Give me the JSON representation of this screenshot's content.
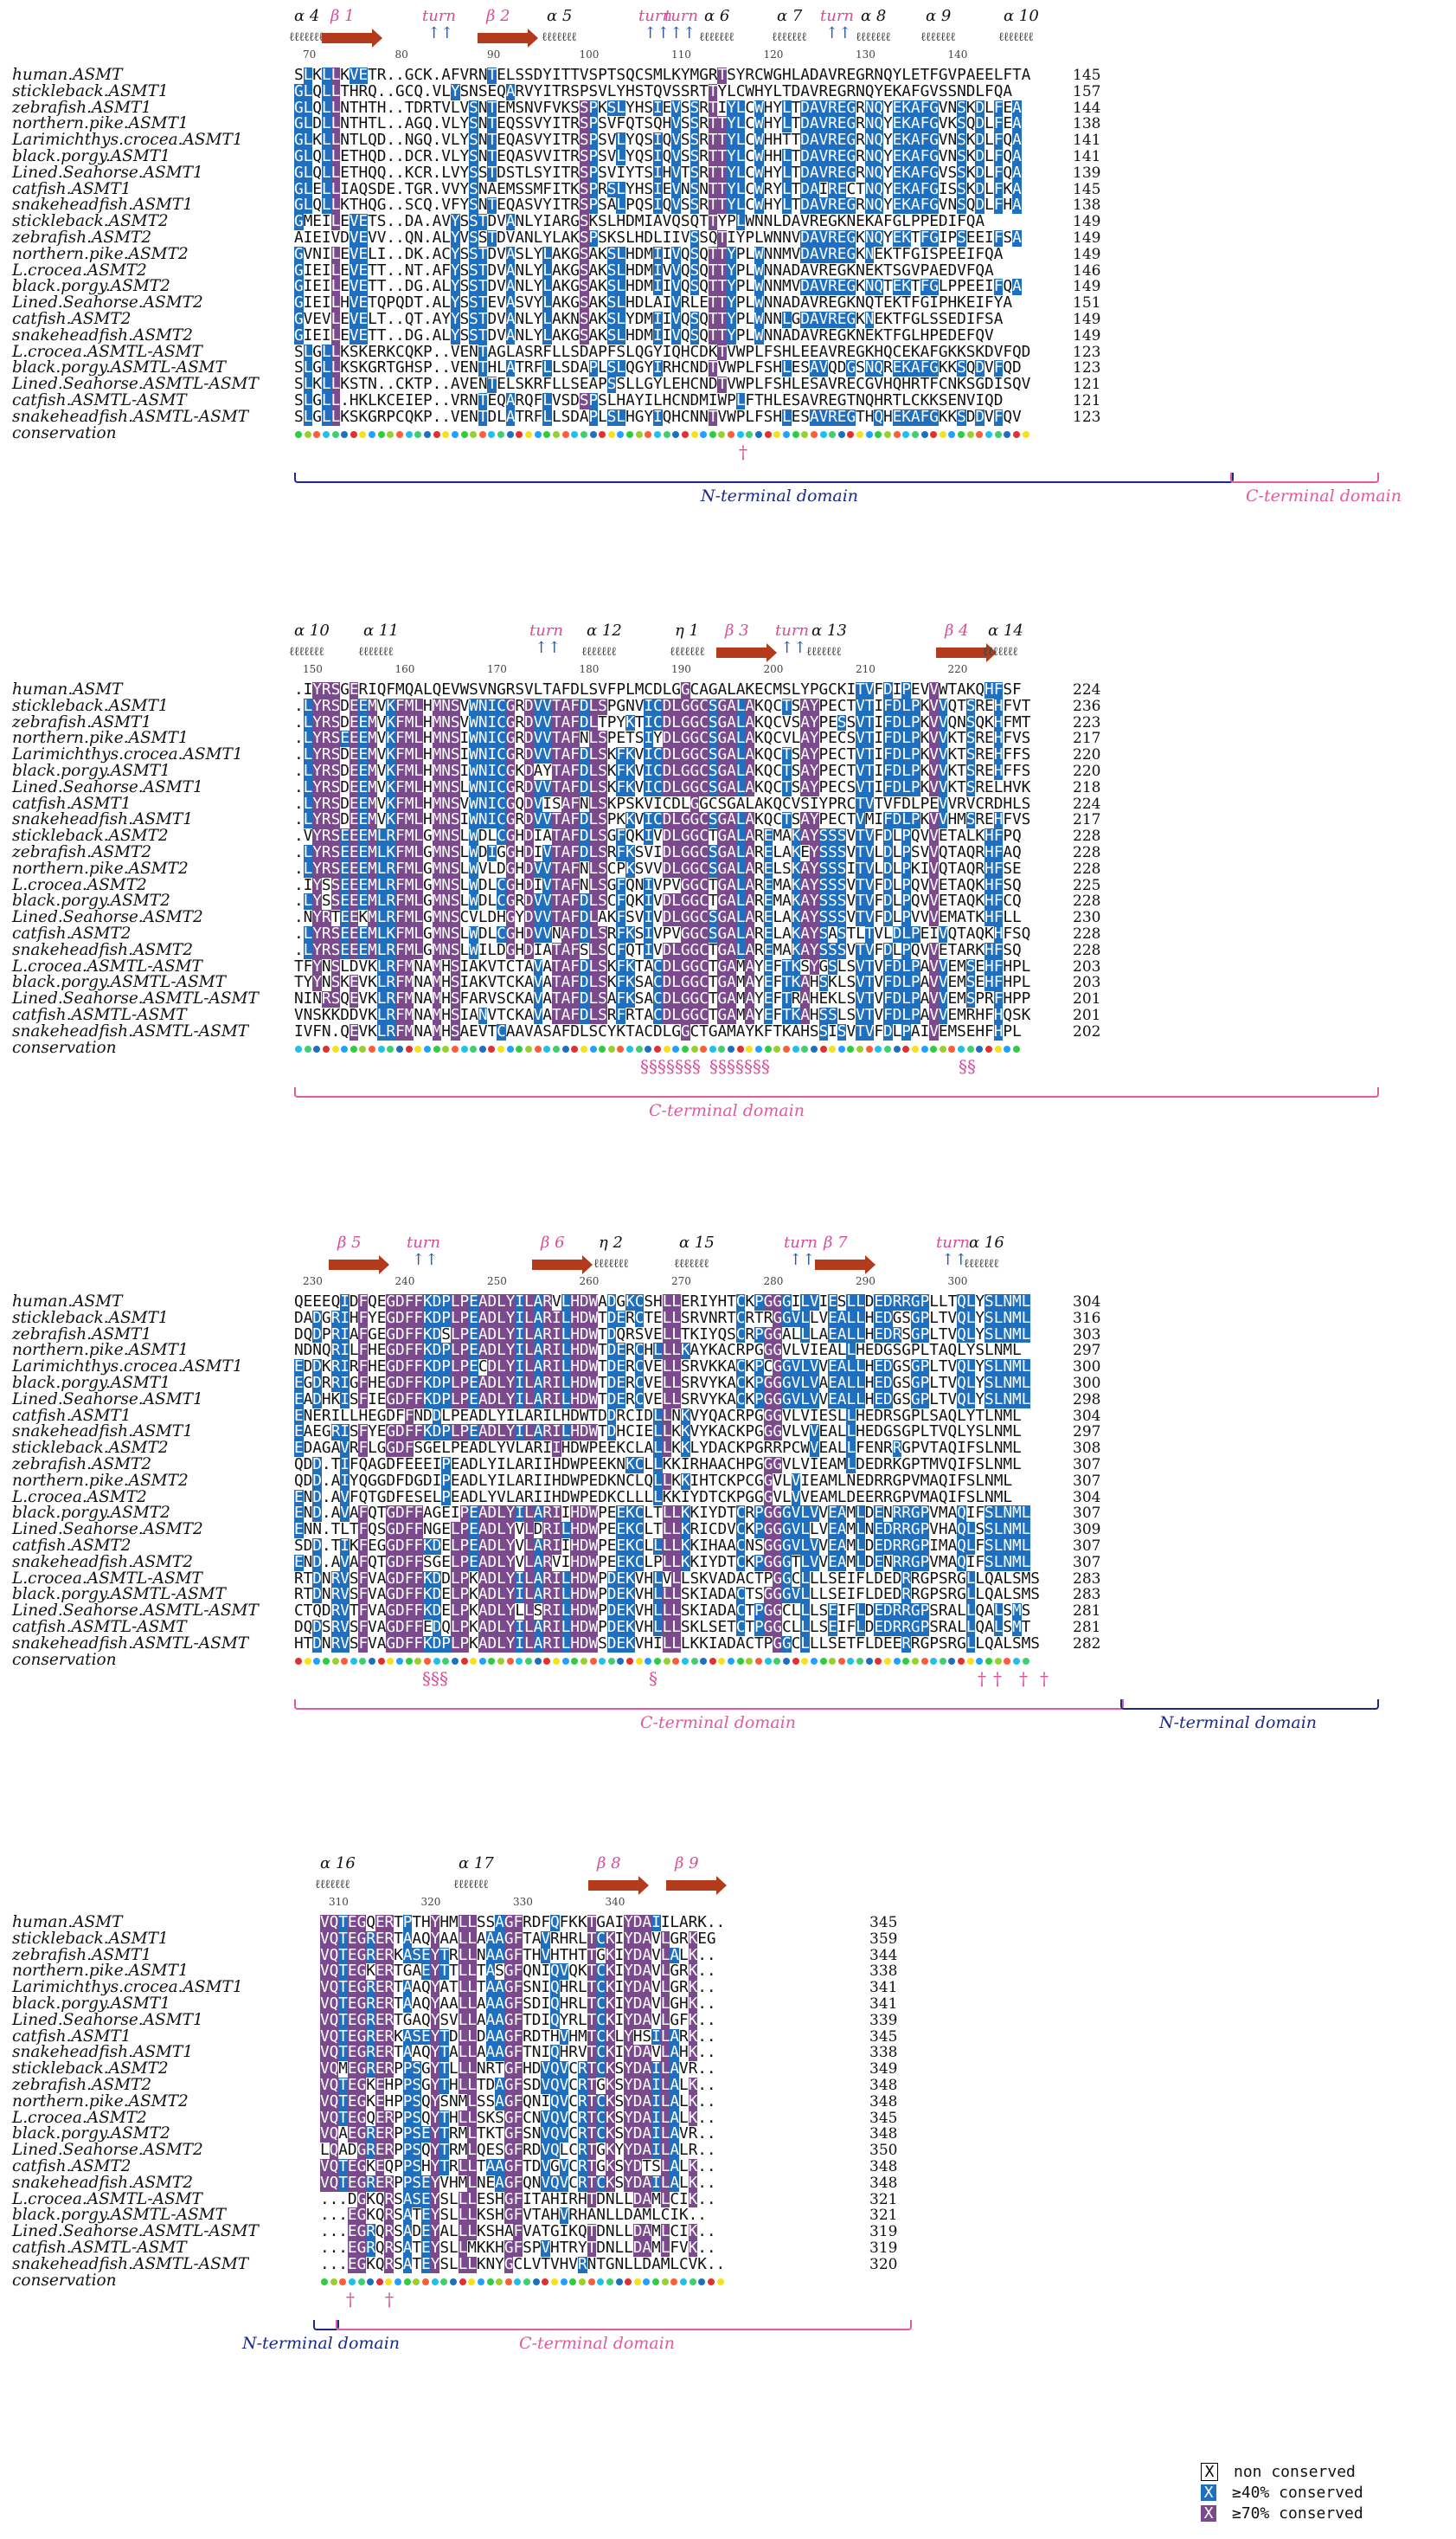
{
  "figure": {
    "legend": {
      "non_conserved": "non conserved",
      "ge40": "≥40% conserved",
      "ge70": "≥70% conserved",
      "swatch_char": "X",
      "colors": {
        "c40": "#1f6fc0",
        "c70": "#7a4a8c"
      }
    },
    "conservation_label": "conservation",
    "domains": {
      "n_terminal": "N-terminal domain",
      "c_terminal": "C-terminal domain"
    },
    "colors": {
      "n_terminal": "#1b2a8a",
      "c_terminal": "#e05a9e",
      "beta_arrow": "#b33a1a",
      "turn_arrow": "#2a5aa0"
    }
  },
  "species": [
    "human.ASMT",
    "stickleback.ASMT1",
    "zebrafish.ASMT1",
    "northern.pike.ASMT1",
    "Larimichthys.crocea.ASMT1",
    "black.porgy.ASMT1",
    "Lined.Seahorse.ASMT1",
    "catfish.ASMT1",
    "snakeheadfish.ASMT1",
    "stickleback.ASMT2",
    "zebrafish.ASMT2",
    "northern.pike.ASMT2",
    "L.crocea.ASMT2",
    "black.porgy.ASMT2",
    "Lined.Seahorse.ASMT2",
    "catfish.ASMT2",
    "snakeheadfish.ASMT2",
    "L.crocea.ASMTL-ASMT",
    "black.porgy.ASMTL-ASMT",
    "Lined.Seahorse.ASMTL-ASMT",
    "catfish.ASMTL-ASMT",
    "snakeheadfish.ASMTL-ASMT"
  ],
  "blocks": [
    {
      "ss": [
        {
          "type": "helix",
          "label": "α 4"
        },
        {
          "type": "beta",
          "label": "β 1"
        },
        {
          "type": "turn",
          "label": "turn"
        },
        {
          "type": "beta",
          "label": "β 2"
        },
        {
          "type": "helix",
          "label": "α 5"
        },
        {
          "type": "turn",
          "label": "turn"
        },
        {
          "type": "turn",
          "label": "turn"
        },
        {
          "type": "helix",
          "label": "α 6"
        },
        {
          "type": "helix",
          "label": "α 7"
        },
        {
          "type": "turn",
          "label": "turn"
        },
        {
          "type": "helix",
          "label": "α 8"
        },
        {
          "type": "helix",
          "label": "α 9"
        },
        {
          "type": "helix",
          "label": "α 10"
        }
      ],
      "ticks": [
        "70",
        "80",
        "90",
        "100",
        "110",
        "120",
        "130",
        "140"
      ],
      "rows": [
        {
          "seq": "SLKLLKVETR..GCK.AFVRNTELSSDYITTVSPTSQCSMLKYMGRTSYRCWGHLADAVREGRNQYLETFGVPAEELFTA",
          "end": "145"
        },
        {
          "seq": "GLQLLTHRQ..GCQ.VLYSNSEQARVYITRSPSVLYHSTQVSSRTTYLCWHYLTDAVREGRNQYEKAFGVSSNDLFQA",
          "end": "157"
        },
        {
          "seq": "GLQLLNTHTH..TDRTVLVSNTEMSNVFVKSSPKSLYHSIEVSSRTIYLCWHYLTDAVREGRNQYEKAFGVNSKDLFEA",
          "end": "144"
        },
        {
          "seq": "GLDLLNTHTL..AGQ.VLYSNTEQSSVYITRSPSVFQTSQHVSSRTTYLCWHYLTDAVREGRNQYEKAFGVKSQDLFEA",
          "end": "138"
        },
        {
          "seq": "GLKLLNTLQD..NGQ.VLYSNTEQASVYITRSPSVLYQSIQVSSRTTYLCWHHTTDAVREGRNQYEKAFGVNSKDLFQA",
          "end": "141"
        },
        {
          "seq": "GLQLLETHQD..DCR.VLYSNTEQASVVITRSPSVLYQSIQVSSRTTYLCWHHLTDAVREGRNQYEKAFGVNSKDLFQA",
          "end": "141"
        },
        {
          "seq": "GLQLLETHQQ..KCR.LVYSSTDSTLSYITRSPSVIYTSIHVTSRTTYLCWHYLTDAVREGRNQYEKAFGVSSKDLFQA",
          "end": "139"
        },
        {
          "seq": "GLELLIAQSDE.TGR.VVYSNAEMSSMFITKSPRSLYHSIEVNSNTTYLCWRYLTDAIRECTNQYEKAFGISSKDLFKA",
          "end": "145"
        },
        {
          "seq": "GLQLLKTHQG..SCQ.VFYSNTEQASVYITRSPSALPQSIQVSSRTTYLCWHYLTDAVREGRNQYEKAFGVNSQDLFHA",
          "end": "138"
        },
        {
          "seq": "GMEILEVETS..DA.AVYSSTDVANLYIARGSKSLHDMIAVQSQTTYPLWNNLDAVREGKNEKAFGLPPEDIFQA",
          "end": "149"
        },
        {
          "seq": "AIEIVDVEVV..QN.ALYVSSTDVANLYLAKSPSKSLHDLIIVSSQTIYPLWNNVDAVREGKNQYEKTFGIPSEEIFSA",
          "end": "149"
        },
        {
          "seq": "GVNILEVELI..DK.ACYSSTDVASLYLAKGSAKSLHDMIIVQSQTTYPLWNNMVDAVREGKNEKTFGISPEEIFQA",
          "end": "149"
        },
        {
          "seq": "GIEILEVETT..NT.AFYSSTDVANLYLAKGSAKSLHDMIVVQSQTTYPLWNNADAVREGKNEKTSGVPAEDVFQA",
          "end": "146"
        },
        {
          "seq": "GIEILEVETT..DG.ALYSSTDVANLYLAKGSAKSLHDMIIVQSQTTYPLWNNMVDAVREGKNQTEKTFGLPPEEIFQA",
          "end": "149"
        },
        {
          "seq": "GIEILHVETQPQDT.ALYSSTEVASVYLAKGSAKSLHDLAIVRLETTYPLWNNADAVREGKNQTEKTFGIPHKEIFYA",
          "end": "151"
        },
        {
          "seq": "GVEVLEVELT..QT.AYYSSTDVANLYLAKNSAKSLYDMIIVQSQTTYPLWNNLGDAVREGKNEKTFGLSSEDIFSA",
          "end": "149"
        },
        {
          "seq": "GIEILEVETT..DG.ALYSSTDVANLYLAKGSAKSLHDMIIVQSQTTYPLWNNADAVREGKNEKTFGLHPEDEFQV",
          "end": "149"
        },
        {
          "seq": "SLGLLKSKERKCQKP..VENTAGLASRFLLSDAPFSLQGYIQHCDKTVWPLFSHLEEAVREGKHQCEKAFGKKSKDVFQD",
          "end": "123"
        },
        {
          "seq": "SLGLLKSKGRTGHSP..VENTHLATRFLLSDAPLSLQGYIRHCNDTVWPLFSHLESAVQDGSNQREKAFGKKSQDVFQD",
          "end": "123"
        },
        {
          "seq": "SLKLLKSTN..CKTP..AVENTELSKRFLLSEAPSSLLGYLEHCNDTVWPLFSHLESAVRECGVHQHRTFCNKSGDISQV",
          "end": "121"
        },
        {
          "seq": "SLGLL.HKLKCEIEP..VRNTEQARQFLVSDSPSLHAYILHCNDMIWPLFTHLESAVREGTNQHRTLCKKSENVIQD",
          "end": "121"
        },
        {
          "seq": "SLGLLKSKGRPCQKP..VENTDLATRFLLSDAPLSLHGYIQHCNNTVWPLFSHLESAVREGTHQHEKAFGKKSDDVFQV",
          "end": "123"
        }
      ]
    },
    {
      "ss": [
        {
          "type": "helix",
          "label": "α 10"
        },
        {
          "type": "helix",
          "label": "α 11"
        },
        {
          "type": "turn",
          "label": "turn"
        },
        {
          "type": "helix",
          "label": "α 12"
        },
        {
          "type": "helix",
          "label": "η 1"
        },
        {
          "type": "beta",
          "label": "β 3"
        },
        {
          "type": "turn",
          "label": "turn"
        },
        {
          "type": "helix",
          "label": "α 13"
        },
        {
          "type": "beta",
          "label": "β 4"
        },
        {
          "type": "helix",
          "label": "α 14"
        }
      ],
      "ticks": [
        "150",
        "160",
        "170",
        "180",
        "190",
        "200",
        "210",
        "220"
      ],
      "rows": [
        {
          "seq": ".IYRSGERIQFMQALQEVWSVNGRSVLTAFDLSVFPLMCDLGGCAGALAKECMSLYPGCKITVFDIPEVVWTAKQHFSF",
          "end": "224"
        },
        {
          "seq": ".LYRSDEEMVKFMLHMNSVWNICGRDVVTAFDLSPGNVICDLGGCSGALAKQCTSAYPECTVTIFDLPKVVQTSREHFVT",
          "end": "236"
        },
        {
          "seq": ".LYRSDEEMVKFMLHMNSVWNICGRDVVTAFDLTPYKTICDLGGCSGALAKQCVSAYPESSVTIFDLPKVVQNSQKHFMT",
          "end": "223"
        },
        {
          "seq": ".LYRSEEEMVKFMLHMNSIWNICGRDVVTAFNLSPETSIYDLGGCSGALAKQCVLAYPECSVTIFDLPKVVKTSREHFVS",
          "end": "217"
        },
        {
          "seq": ".LYRSDEEMVKFMLHMNSIWNICGRDVVTAFDLSKFKVICDLGGCSGALAKQCTSAYPECTVTIFDLPKVVKTSREHFFS",
          "end": "220"
        },
        {
          "seq": ".LYRSDEEMVKFMLHMNSIWNICGKDAYTAFDLSKFKVICDLGGCSGALAKQCTSAYPECTVTIFDLPKVVKTSREHFFS",
          "end": "220"
        },
        {
          "seq": ".LYRSDEEMVKFMLHMNSLWNICGRDVVTAFDLSKFKVICDLGGCSGALAKQCTSAYPECSVTIFDLPKVVKTSRELHVK",
          "end": "218"
        },
        {
          "seq": ".LYRSDEEMVKFMLHMNSVWNICGQDVISAFNLSKPSKVICDLGGCSGALAKQCVSIYPRCTVTVFDLPEVVRVCRDHLS",
          "end": "224"
        },
        {
          "seq": ".LYRSDEEMVKFMLHMNSIWNICGRDVVTAFDLSPKKVICDLGGCSGALAKQCTSAYPECTVMIFDLPKVVHMSREHFVS",
          "end": "217"
        },
        {
          "seq": ".VYRSEEEMLRFMLGMNSLWDLCGHDIATAFDLSGFQKIVDLGGCTGALAREMAKAYSSSVTVFDLPQVVETALKHFPQ",
          "end": "228"
        },
        {
          "seq": ".LYRSEEEMLKFMLGMNSLWDIGGHDIVTAFDLSRFKSVIDLGGCSGALARELAKEYSSSVTVLDLPSVVQTAQRHFAQ",
          "end": "228"
        },
        {
          "seq": ".LYRSEEEMLRFMLGMNSLWVLDGHDVVTAFNLSCPKSVVDLGGCSGALARELSKAYSSSITVLDLPKIVQTAQRHFSE",
          "end": "228"
        },
        {
          "seq": ".IYSSEEEMLRFMLGMNSLWDLCGHDIVTAFNLSGFQNIVPVGGCTGALAREMAKAYSSSVTVFDLPQVVETAQKHFSQ",
          "end": "225"
        },
        {
          "seq": ".LYSSEEEMLRFMLGMNSLWDLCGRDVVTAFDLSCFQKIVDLGGCTGALAREMAKAYSSSVTVFDLPQVVETAQKHFCQ",
          "end": "228"
        },
        {
          "seq": ".NYRTEEKMLRFMLGMNSCVLDHGYDVVTAFDLAKFSVIVDLGGCSGALARELAKAYSSSVTVFDLPVVVEMATKHFLL",
          "end": "230"
        },
        {
          "seq": ".LYRSEEEMLKFMLGMNSLWDLCGHDVVNAFDLSRFKSIVPVGGCSGALARELAKAYSASTLTVLDLPEIVQTAQKHFSQ",
          "end": "228"
        },
        {
          "seq": ".LYRSEEEMLRFMLGMNSLWILDGHDIATAFSLSCFQTIVDLGGCTGALAREMAKAYSSSVTVFDLPQVVETARKHFSQ",
          "end": "228"
        },
        {
          "seq": "TFYNSLDVKLRFMNAMHSIAKVTCTAVATAFDLSKFKTACDLGGCTGAMAYEFTKSYGSLSVTVFDLPAVVEMSEHFHPL",
          "end": "203"
        },
        {
          "seq": "TYYNSKEVKLRFMNAMHSIAKVTCKAVATAFDLSKFKSACDLGGCTGAMAYEFTKAHSKLSVTVFDLPAVVEMSEHFHPL",
          "end": "203"
        },
        {
          "seq": "NINRSQEVKLRFMNAMHSFARVSCKAVATAFDLSAFKSACDLGGCTGAMAYEFTRAHEKLSVTVFDLPAVVEMSPRFHPP",
          "end": "201"
        },
        {
          "seq": "VNSKKDDVKLRFMNAMHSIANVTCKAVATAFDLSRFRTACDLGGCTGAMAYEFTKAHSSLSVTVFDLPAVVEMRHFHQSK",
          "end": "201"
        },
        {
          "seq": "IVFN.QEVKLRFMNAMHSAEVTCAAVASAFDLSCYKTACDLGGCTGAMAYKFTKAHSSISVTVFDLPAIVEMSEHFHPL",
          "end": "202"
        }
      ]
    },
    {
      "ss": [
        {
          "type": "beta",
          "label": "β 5"
        },
        {
          "type": "turn",
          "label": "turn"
        },
        {
          "type": "beta",
          "label": "β 6"
        },
        {
          "type": "helix",
          "label": "η 2"
        },
        {
          "type": "helix",
          "label": "α 15"
        },
        {
          "type": "turn",
          "label": "turn"
        },
        {
          "type": "beta",
          "label": "β 7"
        },
        {
          "type": "turn",
          "label": "turn"
        },
        {
          "type": "helix",
          "label": "α 16"
        }
      ],
      "ticks": [
        "230",
        "240",
        "250",
        "260",
        "270",
        "280",
        "290",
        "300"
      ],
      "rows": [
        {
          "seq": "QEEEQIDFQEGDFFKDPLPEADLYILARVLHDWADGKCSHLLERIYHTCKPGGGILVIESLLDEDRRGPLLTQLYSLNML",
          "end": "304"
        },
        {
          "seq": "DADGRIHFYEGDFFKDPLPEADLYILARILHDWTDERCTELLSRVNRTCRTRGGVLLVEALLHEDGSGPLTVQLYSLNML",
          "end": "316"
        },
        {
          "seq": "DQDPRIAFGEGDFFKDSLPEADLYILARILHDWTDQRSVELLTKIYQSCRPGGALLLAEALLHEDRSGPLTVQLYSLNML",
          "end": "303"
        },
        {
          "seq": "NDNQRILFHEGDFFKDPLPEADLYILARILHDWTDERCHLLLKAYKACRPGGGVLVIEALLHEDGSGPLTAQLYSLNML",
          "end": "297"
        },
        {
          "seq": "EDDKRIRFHEGDFFKDPLPECDLYILARILHDWTDERCVELLSRVKKACKPCGGVLVVEALLHEDGSGPLTVQLYSLNML",
          "end": "300"
        },
        {
          "seq": "EGDRRIGFHEGDFFKDPLPEADLYILARILHDWTDERCVELLSRVYKACKPGGGVLVAEALLHEDGSGPLTVQLYSLNML",
          "end": "300"
        },
        {
          "seq": "EADHKISFIEGDFFKDPLPEADLYILARILHDWTDERCVELLSRVYKACKPGGGVLVVEALLHEDGSGPLTVQLYSLNML",
          "end": "298"
        },
        {
          "seq": "ENERILLHEGDFFNDDLPEADLYILARILHDWTDDRCIDLLNKVYQACRPGGGVLVIESLLHEDRSGPLSAQLYTLNML",
          "end": "304"
        },
        {
          "seq": "EAEGRISFYEGDFFKDPLPEADLYILARILHDWTDHCIELLKKVYKACKPGGGVLVVEALLHEDGSGPLTVQLYSLNML",
          "end": "297"
        },
        {
          "seq": "EDAGAVRFLGGDFSGELPEADLYVLARIIHDWPEEKCLALLKKLYDACKPGRRPCWVEALLFENRRGPVTAQIFSLNML",
          "end": "308"
        },
        {
          "seq": "QDD.TIFQAGDFEEEIPEADLYILARIIHDWPEEKNKCLLKKIRHAACHPGGGVLVIEAMLDEDRKGPTMVQIFSLNML",
          "end": "307"
        },
        {
          "seq": "QDD.AIYQGGDFDGDIPEADLYILARIIHDWPEDKNCLQLLKKIHTCKPCGGVLVIEAMLNEDRRGPVMAQIFSLNML",
          "end": "307"
        },
        {
          "seq": "END.AVFQTGDFESELPEADLYVLARIIHDWPEDKCLLLLKKIYDTCKPGGGVLVVEAMLDEERRGPVMAQIFSLNML",
          "end": "304"
        },
        {
          "seq": "END.AVAFQTGDFFAGEIPEADLYILARIIHDWPEEKCLTLLKKIYDTCRPGGGVLVVEAMLDENRRGPVMAQIFSLNML",
          "end": "307"
        },
        {
          "seq": "ENN.TLTFQSGDFFNGELPEADLYVLDRILHDWPEEKCLTLLKRICDVCKPGGGVLLVEAMLNEDRRGPVHAQLSSLNML",
          "end": "309"
        },
        {
          "seq": "SDD.TIKFEGGDFFKDELPEADLYVLARIIHDWPEEKCLLLLKKIHAACNSGGGVLVVEAMLDEDRRGPIMAQLFSLNML",
          "end": "307"
        },
        {
          "seq": "END.AVAFQTGDFFSGELPEADLYVLARVIHDWPEEKCLPLLKKIYDTCKPGGGTLVVEAMLDENRRGPVMAQIFSLNML",
          "end": "307"
        },
        {
          "seq": "RTDNRVSFVAGDFFKDDLPKADLYILARILHDWPDEKVHLVLLSKVADACTPGGCLLLSEIFLDEDRRGPSRGLLQALSMS",
          "end": "283"
        },
        {
          "seq": "RTDNRVSFVAGDFFKDELPKADLYILARILHDWPDEKVHLLLSKIADACTSGGGVLLLSEIFLDEDRRGPSRGLLQALSMS",
          "end": "283"
        },
        {
          "seq": "CTQDRVTFVAGDFFKDELPKADLYLLSRILHDWPDEKVHLLLSKIADACTPGGCLLLSEIFLDEDRRGPSRALLQALSMS",
          "end": "281"
        },
        {
          "seq": "DQDSRVSFVAGDFFEDQLPKADLYILARILHDWPDEKVHLLLSKLSETCTPGGCLLLSEIFLDEDRRGPSRALLQALSMT",
          "end": "281"
        },
        {
          "seq": "HTDNRVSFVAGDFFKDPLPKADLYILARILHDWSDEKVHILLLKKIADACTPGGCLLLSETFLDEERRGPSRGLLQALSMS",
          "end": "282"
        }
      ]
    },
    {
      "ss": [
        {
          "type": "helix",
          "label": "α 16"
        },
        {
          "type": "helix",
          "label": "α 17"
        },
        {
          "type": "beta",
          "label": "β 8"
        },
        {
          "type": "beta",
          "label": "β 9"
        }
      ],
      "ticks": [
        "310",
        "320",
        "330",
        "340"
      ],
      "rows": [
        {
          "seq": "VQTEGQERTPTHYHMLLSSAGFRDFQFKKTGAIYDAIILARK..",
          "end": "345"
        },
        {
          "seq": "VQTEGRERTAAQYAALLAAAGFTAVRHRLTCKIYDAVLGRKEG",
          "end": "359"
        },
        {
          "seq": "VQTEGRERKASEYTRLLNAAGFTHVHTHTTGKIYDAVLALK..",
          "end": "344"
        },
        {
          "seq": "VQTEGKERTGAEYTTLLTASGFQNIQVQKTCKIYDAVLGRK..",
          "end": "338"
        },
        {
          "seq": "VQTEGRERTAAQYATLLTAAGFSNIQHRLTCKIYDAVLGRK..",
          "end": "341"
        },
        {
          "seq": "VQTEGRERTAAQYAALLAAAGFSDIQHRLTCKIYDAVLGHK..",
          "end": "341"
        },
        {
          "seq": "VQTEGRERTGAQYSVLLAAAGFTDIQYRLTCKIYDAVLGFK..",
          "end": "339"
        },
        {
          "seq": "VQTEGRERKASEYTDLLDAAGFRDTHVHMTCKLYHSILARK..",
          "end": "345"
        },
        {
          "seq": "VQTEGRERTAAQYTALLAAAGFTNIQHRVTCKIYDAVLAHK..",
          "end": "338"
        },
        {
          "seq": "VQMEGRERPPSGYTLLLNRTGFHDVQVCRTCKSYDAILAVR..",
          "end": "349"
        },
        {
          "seq": "VQTEGKEHPPSGYTHLLTDAGFSDVQVCRTGKSYDAILALK..",
          "end": "348"
        },
        {
          "seq": "VQTEGKEHPPSQYSNMLSSAGFQNIQVCRTCKSYDAILALK..",
          "end": "348"
        },
        {
          "seq": "VQTEGQERPPSQYTHLLSKSGFCNVQVCRTCKSYDAILALK..",
          "end": "345"
        },
        {
          "seq": "VQAEGRERPPSEYTRMLTKTGFSNVQVCRTCKSYDAILAVR..",
          "end": "348"
        },
        {
          "seq": "LQADGRERPPSQYTRMLQESGFRDVQLCRTGKYYDAILALR..",
          "end": "350"
        },
        {
          "seq": "VQTEGKEQPPSHYTRLLTAAGFTDVGVCRTGKSYDTSLALK..",
          "end": "348"
        },
        {
          "seq": "VQTEGRERPPSEYVHMLNEAGFQNVQVCRTCKSYDAILALK..",
          "end": "348"
        },
        {
          "seq": "...DGKQRSASEYSLLLESHGFITAHIRHTDNLLDAMLCIK..",
          "end": "321"
        },
        {
          "seq": "...EGKQRSATEYSLLLKSHGFVTAHVRHANLLDAMLCIK..",
          "end": "321"
        },
        {
          "seq": "...EGRQRSADEYALLLKSHAFVATGIKQTDNLLDAMLCIK..",
          "end": "319"
        },
        {
          "seq": "...EGRQRSATEYSLLMKKHGFSPVHTRYTDNLLDAMLFVK..",
          "end": "319"
        },
        {
          "seq": "...EGKQRSATEYSLLLKNYGCLVTVHVRNTGNLLDAMLCVK..",
          "end": "320"
        }
      ]
    }
  ]
}
